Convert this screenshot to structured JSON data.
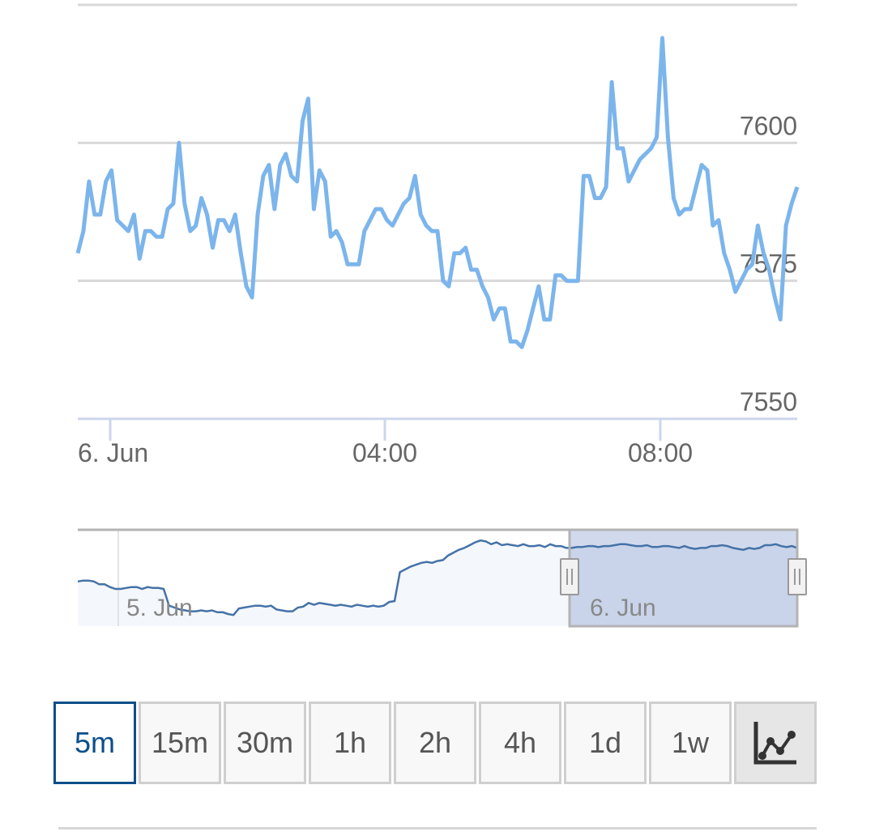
{
  "chart_data": {
    "type": "line",
    "x_tick_labels": [
      "6. Jun",
      "04:00",
      "08:00"
    ],
    "y_tick_labels": [
      "7550",
      "7575",
      "7600"
    ],
    "ylim": [
      7550,
      7625
    ],
    "grid": true,
    "series": [
      {
        "color": "#7cb5ec",
        "values": [
          7580,
          7584,
          7593,
          7587,
          7587,
          7593,
          7595,
          7586,
          7585,
          7584,
          7587,
          7579,
          7584,
          7584,
          7583,
          7583,
          7588,
          7589,
          7600,
          7589,
          7584,
          7585,
          7590,
          7587,
          7581,
          7586,
          7586,
          7584,
          7587,
          7580,
          7574,
          7572,
          7587,
          7594,
          7596,
          7588,
          7596,
          7598,
          7594,
          7593,
          7604,
          7608,
          7588,
          7595,
          7593,
          7583,
          7584,
          7582,
          7578,
          7578,
          7578,
          7584,
          7586,
          7588,
          7588,
          7586,
          7585,
          7587,
          7589,
          7590,
          7594,
          7587,
          7585,
          7584,
          7584,
          7575,
          7574,
          7580,
          7580,
          7581,
          7577,
          7577,
          7574,
          7572,
          7568,
          7570,
          7570,
          7564,
          7564,
          7563,
          7566,
          7570,
          7574,
          7568,
          7568,
          7576,
          7576,
          7575,
          7575,
          7575,
          7594,
          7594,
          7590,
          7590,
          7592,
          7611,
          7599,
          7599,
          7593,
          7595,
          7597,
          7598,
          7599,
          7601,
          7619,
          7601,
          7590,
          7587,
          7588,
          7588,
          7592,
          7596,
          7595,
          7585,
          7586,
          7580,
          7577,
          7573,
          7575,
          7577,
          7578,
          7585,
          7580,
          7577,
          7572,
          7568,
          7585,
          7589,
          7592
        ]
      }
    ],
    "navigator": {
      "labels": [
        "5. Jun",
        "6. Jun"
      ],
      "values": [
        48,
        49,
        49,
        48,
        45,
        45,
        42,
        40,
        40,
        41,
        42,
        42,
        40,
        42,
        41,
        41,
        40,
        22,
        20,
        18,
        17,
        16,
        16,
        17,
        16,
        17,
        15,
        15,
        13,
        12,
        19,
        20,
        21,
        22,
        22,
        21,
        22,
        18,
        17,
        16,
        16,
        20,
        21,
        25,
        23,
        25,
        24,
        23,
        22,
        23,
        22,
        21,
        23,
        22,
        21,
        22,
        21,
        22,
        26,
        27,
        58,
        61,
        64,
        66,
        68,
        69,
        68,
        70,
        71,
        76,
        79,
        82,
        84,
        87,
        90,
        92,
        91,
        88,
        90,
        87,
        88,
        87,
        86,
        88,
        86,
        86,
        87,
        85,
        88,
        86,
        86,
        84,
        84,
        85,
        85,
        86,
        86,
        85,
        86,
        86,
        87,
        88,
        88,
        87,
        86,
        86,
        87,
        85,
        85,
        86,
        86,
        85,
        84,
        86,
        84,
        83,
        84,
        84,
        86,
        86,
        87,
        86,
        84,
        83,
        82,
        84,
        83,
        84,
        87,
        87,
        88,
        86,
        85,
        86,
        84
      ]
    }
  },
  "range_selector": {
    "buttons": [
      "5m",
      "15m",
      "30m",
      "1h",
      "2h",
      "4h",
      "1d",
      "1w"
    ],
    "selected": "5m",
    "chart_type_icon": "line-chart-icon"
  }
}
